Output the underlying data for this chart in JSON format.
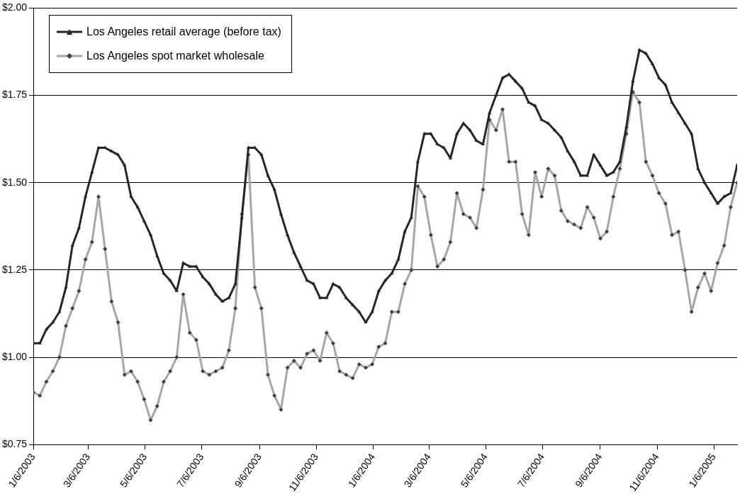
{
  "chart_data": {
    "type": "line",
    "x": [
      "2003-01-06",
      "2003-01-13",
      "2003-01-20",
      "2003-01-27",
      "2003-02-03",
      "2003-02-10",
      "2003-02-17",
      "2003-02-24",
      "2003-03-03",
      "2003-03-10",
      "2003-03-17",
      "2003-03-24",
      "2003-03-31",
      "2003-04-07",
      "2003-04-14",
      "2003-04-21",
      "2003-04-28",
      "2003-05-05",
      "2003-05-12",
      "2003-05-19",
      "2003-05-26",
      "2003-06-02",
      "2003-06-09",
      "2003-06-16",
      "2003-06-23",
      "2003-06-30",
      "2003-07-07",
      "2003-07-14",
      "2003-07-21",
      "2003-07-28",
      "2003-08-04",
      "2003-08-11",
      "2003-08-18",
      "2003-08-25",
      "2003-09-01",
      "2003-09-08",
      "2003-09-15",
      "2003-09-22",
      "2003-09-29",
      "2003-10-06",
      "2003-10-13",
      "2003-10-20",
      "2003-10-27",
      "2003-11-03",
      "2003-11-10",
      "2003-11-17",
      "2003-11-24",
      "2003-12-01",
      "2003-12-08",
      "2003-12-15",
      "2003-12-22",
      "2003-12-29",
      "2004-01-05",
      "2004-01-12",
      "2004-01-19",
      "2004-01-26",
      "2004-02-02",
      "2004-02-09",
      "2004-02-16",
      "2004-02-23",
      "2004-03-01",
      "2004-03-08",
      "2004-03-15",
      "2004-03-22",
      "2004-03-29",
      "2004-04-05",
      "2004-04-12",
      "2004-04-19",
      "2004-04-26",
      "2004-05-03",
      "2004-05-10",
      "2004-05-17",
      "2004-05-24",
      "2004-05-31",
      "2004-06-07",
      "2004-06-14",
      "2004-06-21",
      "2004-06-28",
      "2004-07-05",
      "2004-07-12",
      "2004-07-19",
      "2004-07-26",
      "2004-08-02",
      "2004-08-09",
      "2004-08-16",
      "2004-08-23",
      "2004-08-30",
      "2004-09-06",
      "2004-09-13",
      "2004-09-20",
      "2004-09-27",
      "2004-10-04",
      "2004-10-11",
      "2004-10-18",
      "2004-10-25",
      "2004-11-01",
      "2004-11-08",
      "2004-11-15",
      "2004-11-22",
      "2004-11-29",
      "2004-12-06",
      "2004-12-13",
      "2004-12-20",
      "2004-12-27",
      "2005-01-03",
      "2005-01-10",
      "2005-01-17",
      "2005-01-24",
      "2005-01-31"
    ],
    "series": [
      {
        "name": "Los Angeles retail average (before tax)",
        "color": "#262626",
        "marker": "triangle",
        "values": [
          1.04,
          1.04,
          1.08,
          1.1,
          1.13,
          1.2,
          1.32,
          1.37,
          1.46,
          1.53,
          1.6,
          1.6,
          1.59,
          1.58,
          1.55,
          1.46,
          1.43,
          1.39,
          1.35,
          1.29,
          1.24,
          1.22,
          1.19,
          1.27,
          1.26,
          1.26,
          1.23,
          1.21,
          1.18,
          1.16,
          1.17,
          1.21,
          1.4,
          1.6,
          1.6,
          1.58,
          1.52,
          1.48,
          1.41,
          1.35,
          1.3,
          1.26,
          1.22,
          1.21,
          1.17,
          1.17,
          1.21,
          1.2,
          1.17,
          1.15,
          1.13,
          1.1,
          1.13,
          1.19,
          1.22,
          1.24,
          1.28,
          1.36,
          1.4,
          1.56,
          1.64,
          1.64,
          1.61,
          1.6,
          1.57,
          1.64,
          1.67,
          1.65,
          1.62,
          1.61,
          1.7,
          1.75,
          1.8,
          1.81,
          1.79,
          1.77,
          1.73,
          1.72,
          1.68,
          1.67,
          1.65,
          1.63,
          1.59,
          1.56,
          1.52,
          1.52,
          1.58,
          1.55,
          1.52,
          1.53,
          1.56,
          1.66,
          1.79,
          1.88,
          1.87,
          1.84,
          1.8,
          1.78,
          1.73,
          1.7,
          1.67,
          1.64,
          1.54,
          1.5,
          1.47,
          1.44,
          1.46,
          1.47,
          1.55
        ]
      },
      {
        "name": "Los Angeles spot market wholesale",
        "color": "#a6a6a6",
        "marker": "diamond",
        "values": [
          0.9,
          0.89,
          0.93,
          0.96,
          1.0,
          1.09,
          1.14,
          1.19,
          1.28,
          1.33,
          1.46,
          1.31,
          1.16,
          1.1,
          0.95,
          0.96,
          0.93,
          0.88,
          0.82,
          0.86,
          0.93,
          0.96,
          1.0,
          1.18,
          1.07,
          1.05,
          0.96,
          0.95,
          0.96,
          0.97,
          1.02,
          1.14,
          1.41,
          1.58,
          1.2,
          1.14,
          0.95,
          0.89,
          0.85,
          0.97,
          0.99,
          0.97,
          1.01,
          1.02,
          0.99,
          1.07,
          1.04,
          0.96,
          0.95,
          0.94,
          0.98,
          0.97,
          0.98,
          1.03,
          1.04,
          1.13,
          1.13,
          1.21,
          1.25,
          1.49,
          1.46,
          1.35,
          1.26,
          1.28,
          1.33,
          1.47,
          1.41,
          1.4,
          1.37,
          1.48,
          1.68,
          1.65,
          1.71,
          1.56,
          1.56,
          1.41,
          1.35,
          1.53,
          1.46,
          1.54,
          1.52,
          1.42,
          1.39,
          1.38,
          1.37,
          1.43,
          1.4,
          1.34,
          1.36,
          1.46,
          1.54,
          1.64,
          1.76,
          1.73,
          1.56,
          1.52,
          1.47,
          1.44,
          1.35,
          1.36,
          1.25,
          1.13,
          1.2,
          1.24,
          1.19,
          1.27,
          1.32,
          1.43,
          1.5
        ]
      }
    ],
    "xlim": [
      "2003-01-06",
      "2005-01-31"
    ],
    "xticks": [
      {
        "value": "2003-01-06",
        "label": "1/6/2003"
      },
      {
        "value": "2003-03-06",
        "label": "3/6/2003"
      },
      {
        "value": "2003-05-06",
        "label": "5/6/2003"
      },
      {
        "value": "2003-07-06",
        "label": "7/6/2003"
      },
      {
        "value": "2003-09-06",
        "label": "9/6/2003"
      },
      {
        "value": "2003-11-06",
        "label": "11/6/2003"
      },
      {
        "value": "2004-01-06",
        "label": "1/6/2004"
      },
      {
        "value": "2004-03-06",
        "label": "3/6/2004"
      },
      {
        "value": "2004-05-06",
        "label": "5/6/2004"
      },
      {
        "value": "2004-07-06",
        "label": "7/6/2004"
      },
      {
        "value": "2004-09-06",
        "label": "9/6/2004"
      },
      {
        "value": "2004-11-06",
        "label": "11/6/2004"
      },
      {
        "value": "2005-01-06",
        "label": "1/6/2005"
      }
    ],
    "ylim": [
      0.75,
      2.0
    ],
    "yticks": [
      {
        "value": 0.75,
        "label": "$0.75"
      },
      {
        "value": 1.0,
        "label": "$1.00"
      },
      {
        "value": 1.25,
        "label": "$1.25"
      },
      {
        "value": 1.5,
        "label": "$1.50"
      },
      {
        "value": 1.75,
        "label": "$1.75"
      },
      {
        "value": 2.0,
        "label": "$2.00"
      }
    ],
    "grid": "y",
    "legend": "top left"
  }
}
